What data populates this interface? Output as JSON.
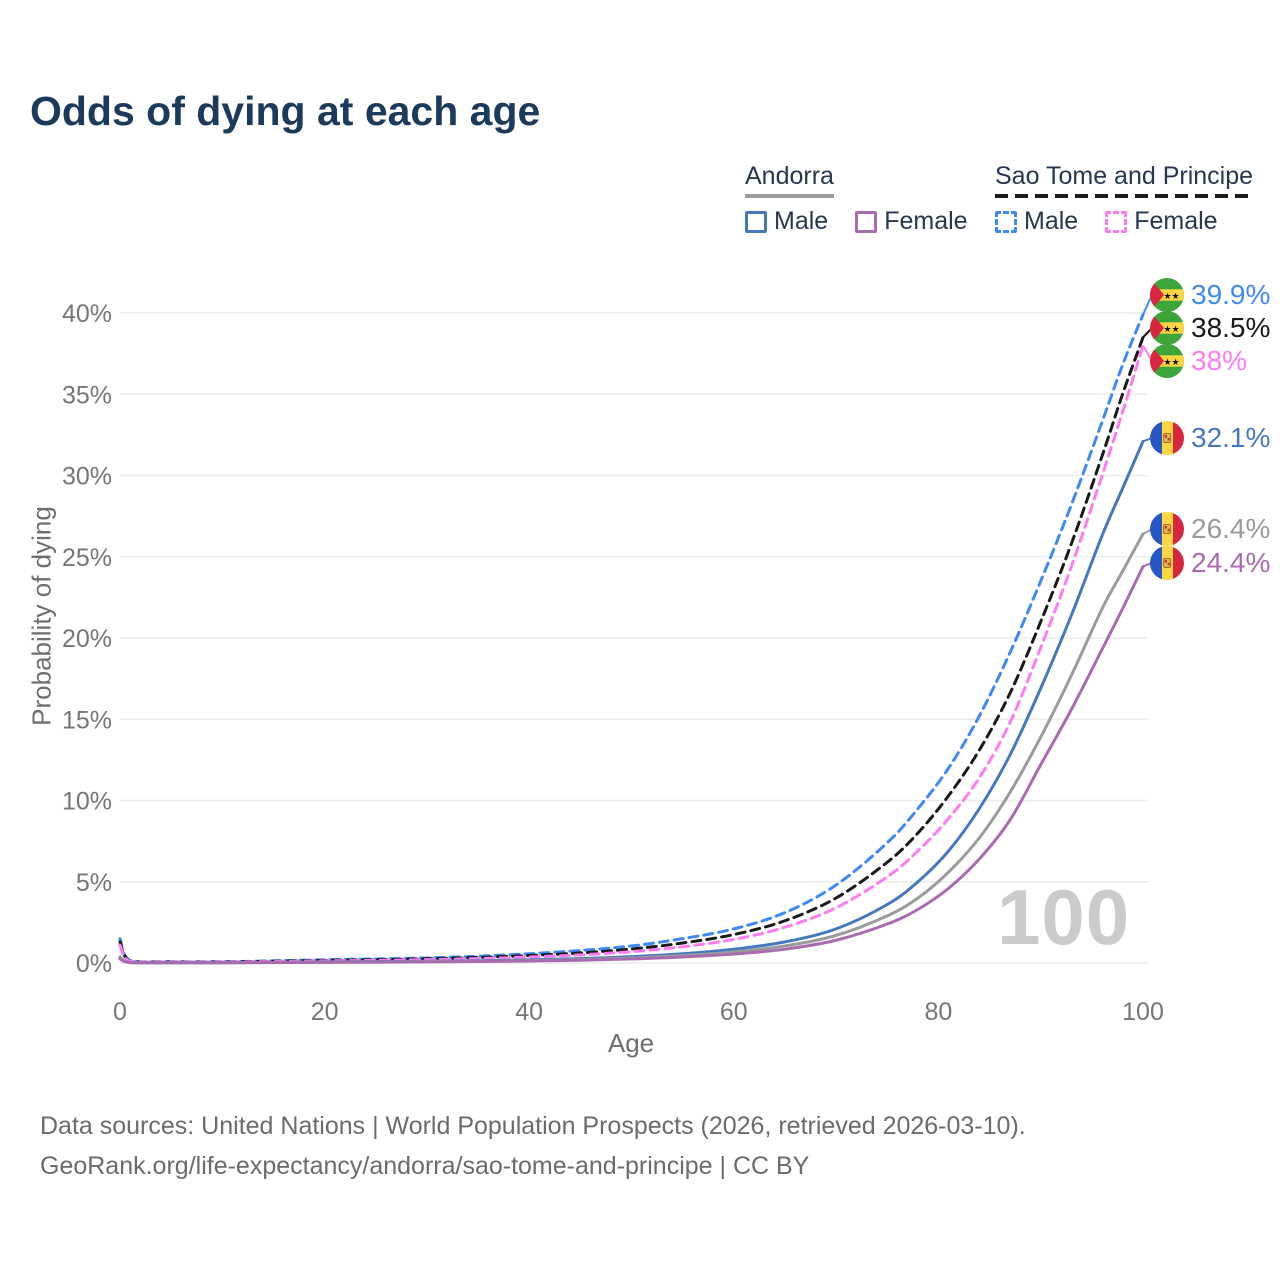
{
  "title": "Odds of dying at each age",
  "watermark": "100",
  "legend": {
    "groups": [
      {
        "name": "Andorra",
        "line_style": "solid",
        "underline_color": "#9b9b9b",
        "items": [
          {
            "label": "Male",
            "color": "#4678c0"
          },
          {
            "label": "Female",
            "color": "#a96bb0"
          }
        ]
      },
      {
        "name": "Sao Tome and Principe",
        "line_style": "dashed",
        "underline_color": "#1a1a1a",
        "items": [
          {
            "label": "Male",
            "color": "#3f88f8"
          },
          {
            "label": "Female",
            "color": "#ff7cf0"
          }
        ]
      }
    ]
  },
  "footer": {
    "line1": "Data sources: United Nations | World Population Prospects (2026, retrieved 2026-03-10).",
    "line2": "GeoRank.org/life-expectancy/andorra/sao-tome-and-principe | CC BY"
  },
  "chart_data": {
    "type": "line",
    "title": "Odds of dying at each age",
    "xlabel": "Age",
    "ylabel": "Probability of dying",
    "xlim": [
      0,
      100
    ],
    "ylim": [
      0,
      42
    ],
    "grid": "horizontal",
    "gridline_color": "#ebebeb",
    "legend_position": "top-right",
    "xticks": [
      {
        "v": 0,
        "label": "0"
      },
      {
        "v": 20,
        "label": "20"
      },
      {
        "v": 40,
        "label": "40"
      },
      {
        "v": 60,
        "label": "60"
      },
      {
        "v": 80,
        "label": "80"
      },
      {
        "v": 100,
        "label": "100"
      }
    ],
    "yticks": [
      {
        "v": 0,
        "label": "0%"
      },
      {
        "v": 5,
        "label": "5%"
      },
      {
        "v": 10,
        "label": "10%"
      },
      {
        "v": 15,
        "label": "15%"
      },
      {
        "v": 20,
        "label": "20%"
      },
      {
        "v": 25,
        "label": "25%"
      },
      {
        "v": 30,
        "label": "30%"
      },
      {
        "v": 35,
        "label": "35%"
      },
      {
        "v": 40,
        "label": "40%"
      }
    ],
    "series": [
      {
        "id": "sao-tome-and-principe-male",
        "name": "Sao Tome and Principe — Male",
        "color": "#3f88f8",
        "dashed": true,
        "flag": "sao-tome-and-principe",
        "end_label": "39.9%",
        "end_value": 39.9,
        "points": [
          [
            0,
            1.5
          ],
          [
            1,
            0.15
          ],
          [
            5,
            0.08
          ],
          [
            10,
            0.08
          ],
          [
            15,
            0.13
          ],
          [
            20,
            0.2
          ],
          [
            25,
            0.25
          ],
          [
            30,
            0.31
          ],
          [
            35,
            0.42
          ],
          [
            40,
            0.57
          ],
          [
            45,
            0.77
          ],
          [
            50,
            1.05
          ],
          [
            55,
            1.5
          ],
          [
            60,
            2.1
          ],
          [
            65,
            3.1
          ],
          [
            70,
            4.8
          ],
          [
            75,
            7.4
          ],
          [
            78,
            9.5
          ],
          [
            81,
            12.0
          ],
          [
            84,
            15.2
          ],
          [
            87,
            19.1
          ],
          [
            90,
            23.5
          ],
          [
            93,
            28.2
          ],
          [
            96,
            33.3
          ],
          [
            98,
            36.8
          ],
          [
            100,
            39.9
          ]
        ]
      },
      {
        "id": "sao-tome-and-principe-both-sexes",
        "name": "Sao Tome and Principe",
        "color": "#1a1a1a",
        "dashed": true,
        "flag": "sao-tome-and-principe",
        "end_label": "38.5%",
        "end_value": 38.5,
        "points": [
          [
            0,
            1.3
          ],
          [
            1,
            0.13
          ],
          [
            5,
            0.07
          ],
          [
            10,
            0.07
          ],
          [
            15,
            0.11
          ],
          [
            20,
            0.16
          ],
          [
            25,
            0.2
          ],
          [
            30,
            0.26
          ],
          [
            35,
            0.34
          ],
          [
            40,
            0.46
          ],
          [
            45,
            0.62
          ],
          [
            50,
            0.86
          ],
          [
            55,
            1.23
          ],
          [
            60,
            1.75
          ],
          [
            65,
            2.6
          ],
          [
            70,
            4.0
          ],
          [
            75,
            6.2
          ],
          [
            78,
            8.0
          ],
          [
            81,
            10.3
          ],
          [
            84,
            13.1
          ],
          [
            87,
            16.6
          ],
          [
            90,
            21.0
          ],
          [
            93,
            25.8
          ],
          [
            96,
            31.2
          ],
          [
            98,
            35.0
          ],
          [
            100,
            38.5
          ]
        ]
      },
      {
        "id": "sao-tome-and-principe-female",
        "name": "Sao Tome and Principe — Female",
        "color": "#ff7cf0",
        "dashed": true,
        "flag": "sao-tome-and-principe",
        "end_label": "38%",
        "end_value": 38.0,
        "points": [
          [
            0,
            1.1
          ],
          [
            1,
            0.11
          ],
          [
            5,
            0.06
          ],
          [
            10,
            0.06
          ],
          [
            15,
            0.09
          ],
          [
            20,
            0.13
          ],
          [
            25,
            0.16
          ],
          [
            30,
            0.21
          ],
          [
            35,
            0.27
          ],
          [
            40,
            0.37
          ],
          [
            45,
            0.5
          ],
          [
            50,
            0.7
          ],
          [
            55,
            1.0
          ],
          [
            60,
            1.45
          ],
          [
            65,
            2.2
          ],
          [
            70,
            3.4
          ],
          [
            75,
            5.3
          ],
          [
            78,
            6.9
          ],
          [
            81,
            8.9
          ],
          [
            84,
            11.4
          ],
          [
            87,
            14.8
          ],
          [
            90,
            19.4
          ],
          [
            93,
            24.4
          ],
          [
            96,
            30.0
          ],
          [
            98,
            33.9
          ],
          [
            100,
            38.0
          ]
        ]
      },
      {
        "id": "andorra-male",
        "name": "Andorra — Male",
        "color": "#4678c0",
        "dashed": false,
        "flag": "andorra",
        "end_label": "32.1%",
        "end_value": 32.1,
        "points": [
          [
            0,
            0.35
          ],
          [
            1,
            0.04
          ],
          [
            5,
            0.02
          ],
          [
            10,
            0.02
          ],
          [
            15,
            0.04
          ],
          [
            20,
            0.07
          ],
          [
            25,
            0.09
          ],
          [
            30,
            0.11
          ],
          [
            35,
            0.14
          ],
          [
            40,
            0.19
          ],
          [
            45,
            0.27
          ],
          [
            50,
            0.39
          ],
          [
            55,
            0.57
          ],
          [
            60,
            0.85
          ],
          [
            65,
            1.3
          ],
          [
            70,
            2.1
          ],
          [
            75,
            3.6
          ],
          [
            78,
            5.0
          ],
          [
            81,
            6.9
          ],
          [
            84,
            9.5
          ],
          [
            87,
            12.8
          ],
          [
            90,
            16.9
          ],
          [
            93,
            21.4
          ],
          [
            96,
            26.3
          ],
          [
            98,
            29.2
          ],
          [
            100,
            32.1
          ]
        ]
      },
      {
        "id": "andorra-both-sexes",
        "name": "Andorra",
        "color": "#9b9b9b",
        "dashed": false,
        "flag": "andorra",
        "end_label": "26.4%",
        "end_value": 26.4,
        "points": [
          [
            0,
            0.3
          ],
          [
            1,
            0.03
          ],
          [
            5,
            0.017
          ],
          [
            10,
            0.017
          ],
          [
            15,
            0.03
          ],
          [
            20,
            0.05
          ],
          [
            25,
            0.07
          ],
          [
            30,
            0.09
          ],
          [
            35,
            0.11
          ],
          [
            40,
            0.15
          ],
          [
            45,
            0.21
          ],
          [
            50,
            0.31
          ],
          [
            55,
            0.46
          ],
          [
            60,
            0.68
          ],
          [
            65,
            1.05
          ],
          [
            70,
            1.7
          ],
          [
            75,
            2.9
          ],
          [
            78,
            4.0
          ],
          [
            81,
            5.6
          ],
          [
            84,
            7.7
          ],
          [
            87,
            10.5
          ],
          [
            90,
            13.9
          ],
          [
            93,
            17.7
          ],
          [
            96,
            21.8
          ],
          [
            98,
            24.1
          ],
          [
            100,
            26.4
          ]
        ]
      },
      {
        "id": "andorra-female",
        "name": "Andorra — Female",
        "color": "#a96bb0",
        "dashed": false,
        "flag": "andorra",
        "end_label": "24.4%",
        "end_value": 24.4,
        "points": [
          [
            0,
            0.25
          ],
          [
            1,
            0.025
          ],
          [
            5,
            0.015
          ],
          [
            10,
            0.015
          ],
          [
            15,
            0.025
          ],
          [
            20,
            0.04
          ],
          [
            25,
            0.05
          ],
          [
            30,
            0.07
          ],
          [
            35,
            0.09
          ],
          [
            40,
            0.12
          ],
          [
            45,
            0.17
          ],
          [
            50,
            0.25
          ],
          [
            55,
            0.37
          ],
          [
            60,
            0.55
          ],
          [
            65,
            0.85
          ],
          [
            70,
            1.4
          ],
          [
            75,
            2.4
          ],
          [
            78,
            3.3
          ],
          [
            81,
            4.6
          ],
          [
            84,
            6.4
          ],
          [
            87,
            8.8
          ],
          [
            90,
            12.2
          ],
          [
            93,
            15.6
          ],
          [
            96,
            19.3
          ],
          [
            98,
            21.8
          ],
          [
            100,
            24.4
          ]
        ]
      }
    ]
  }
}
